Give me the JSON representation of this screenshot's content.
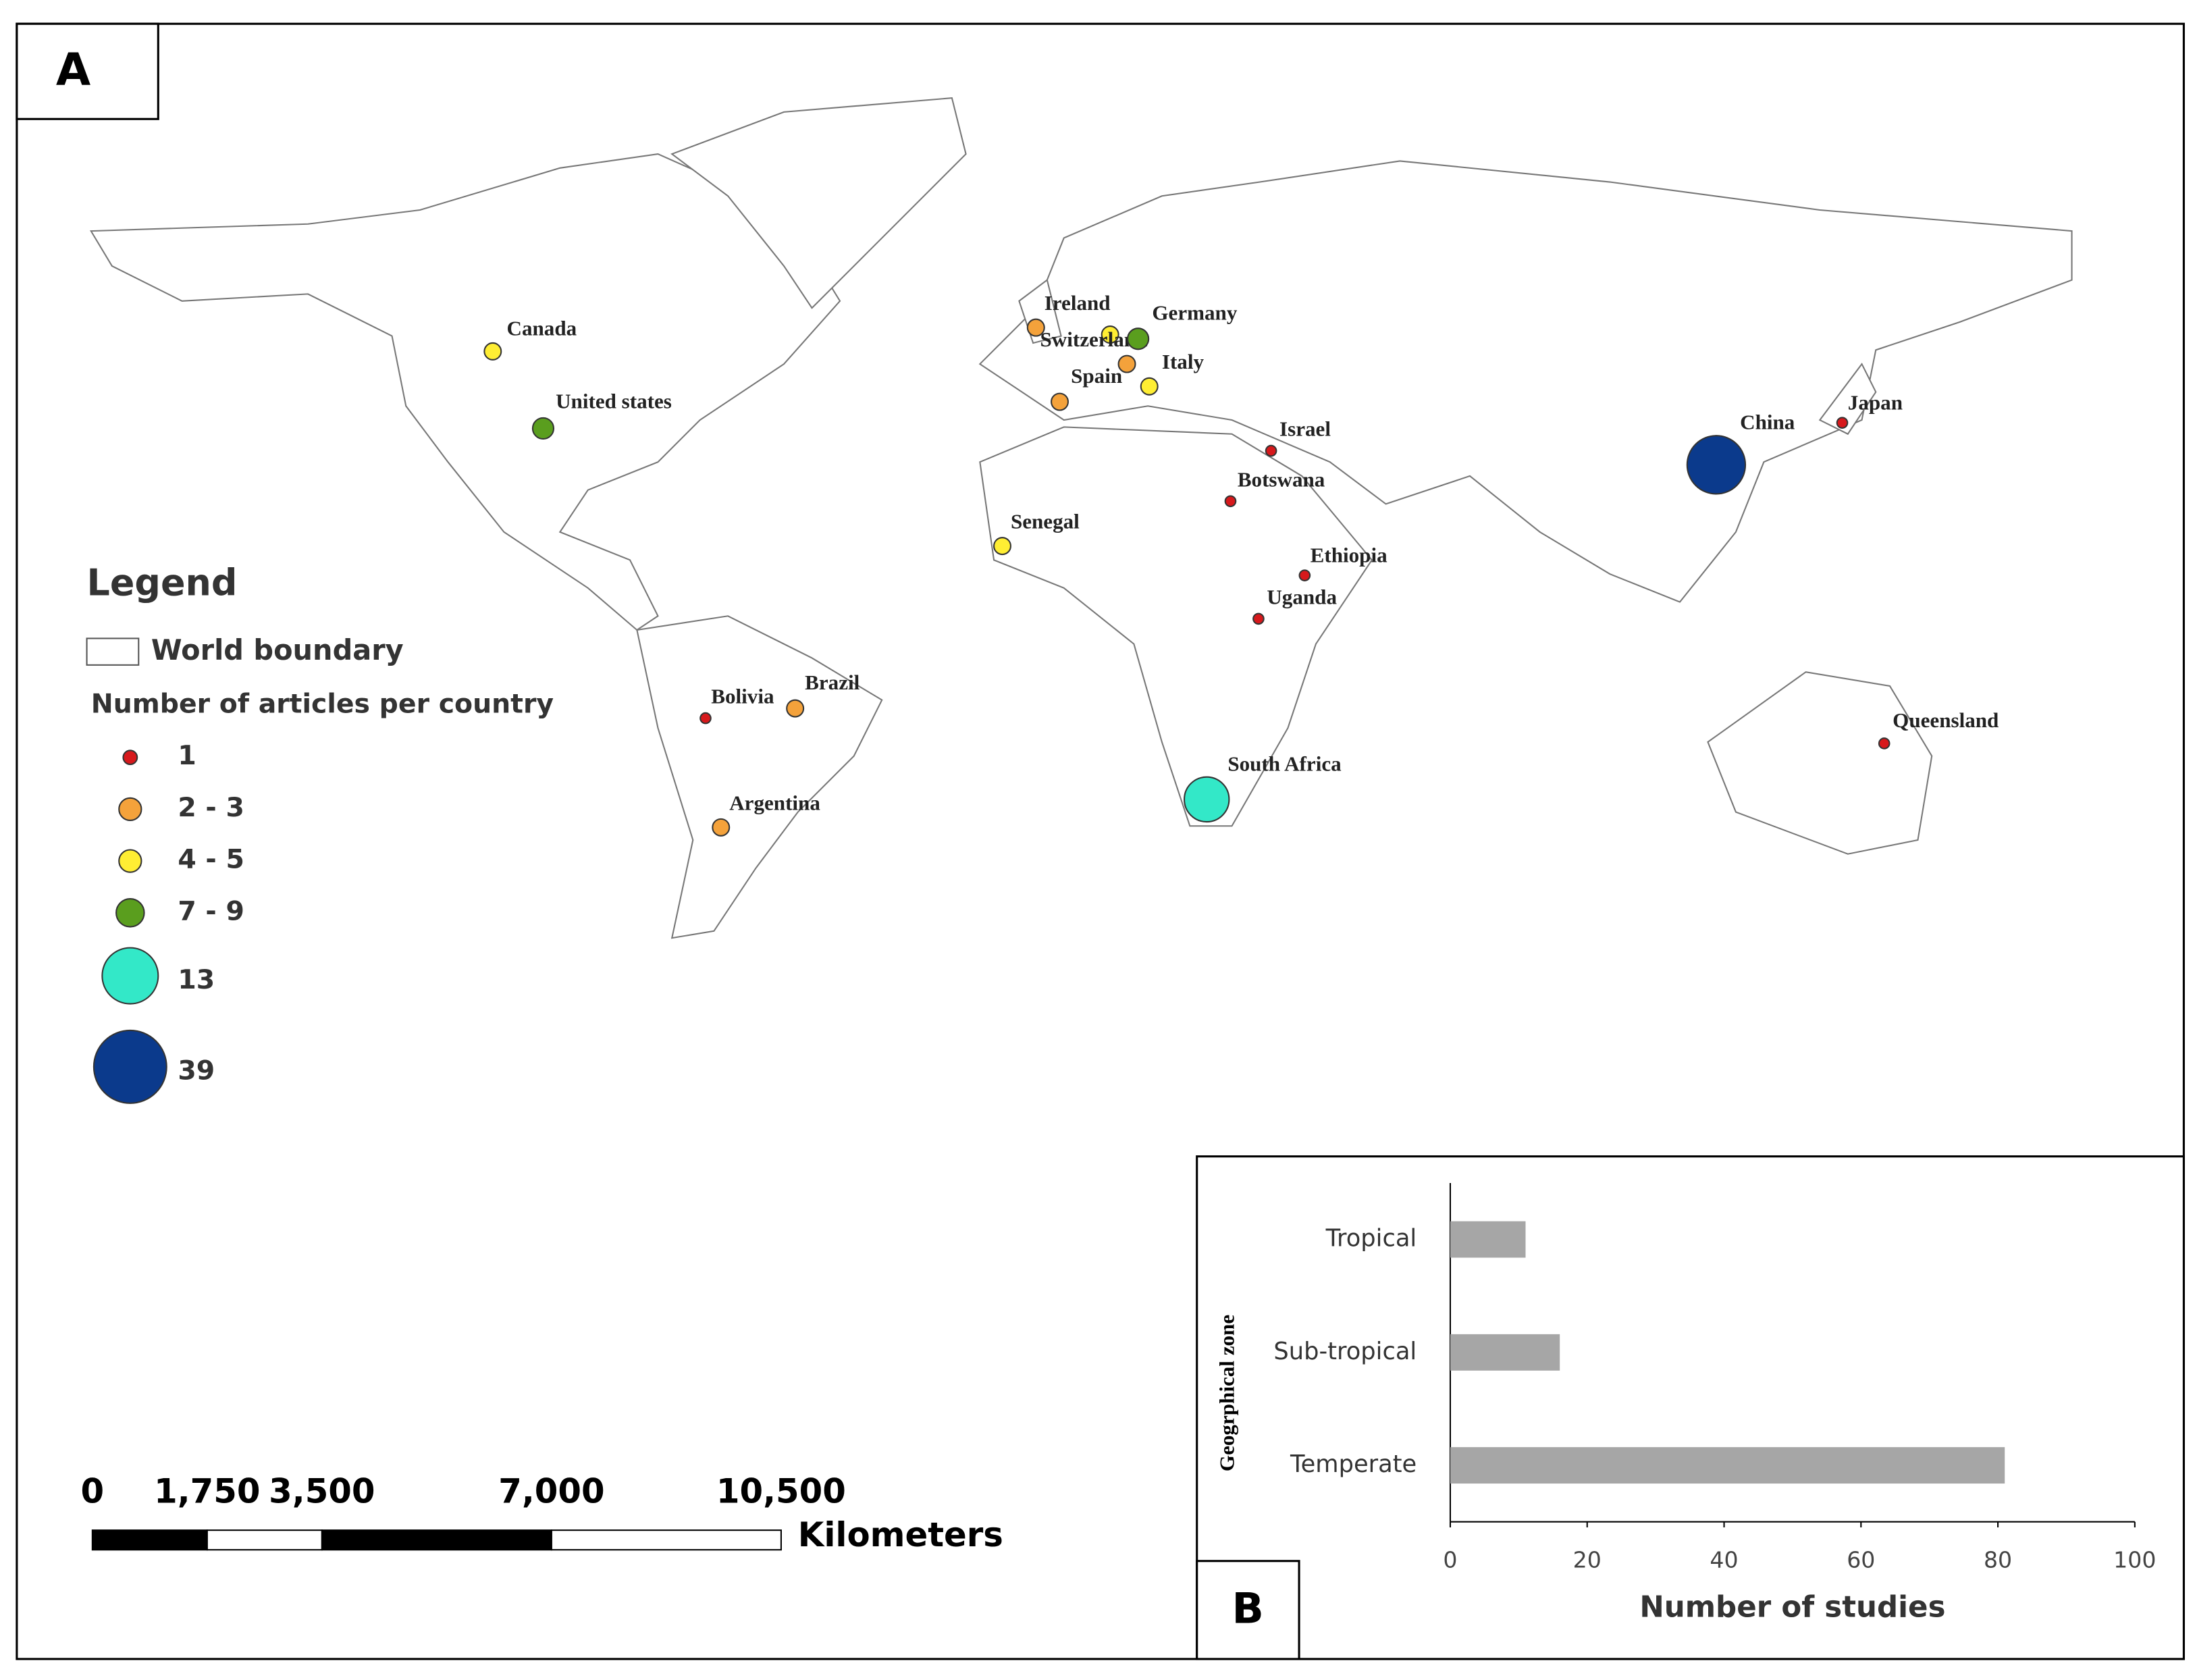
{
  "panels": {
    "a": "A",
    "b": "B"
  },
  "legend": {
    "title": "Legend",
    "boundary": "World boundary",
    "subtitle": "Number of articles per country",
    "classes": [
      {
        "label": "1",
        "color": "#d7191c"
      },
      {
        "label": "2 - 3",
        "color": "#f4a23b"
      },
      {
        "label": "4 - 5",
        "color": "#ffee33"
      },
      {
        "label": "7 - 9",
        "color": "#5a9e1e"
      },
      {
        "label": "13",
        "color": "#33e8c8"
      },
      {
        "label": "39",
        "color": "#0b3a8c"
      }
    ]
  },
  "countries": [
    {
      "name": "Canada",
      "class": "4 - 5"
    },
    {
      "name": "United states",
      "class": "7 - 9"
    },
    {
      "name": "Ireland",
      "class": "2 - 3"
    },
    {
      "name": "Switzerland",
      "class": "4 - 5"
    },
    {
      "name": "Germany",
      "class": "7 - 9"
    },
    {
      "name": null,
      "class": "2 - 3"
    },
    {
      "name": "Spain",
      "class": "2 - 3"
    },
    {
      "name": "Italy",
      "class": "4 - 5"
    },
    {
      "name": "Israel",
      "class": "1"
    },
    {
      "name": "Botswana",
      "class": "1"
    },
    {
      "name": "Senegal",
      "class": "4 - 5"
    },
    {
      "name": "Ethiopia",
      "class": "1"
    },
    {
      "name": "Uganda",
      "class": "1"
    },
    {
      "name": "Bolivia",
      "class": "1"
    },
    {
      "name": "Brazil",
      "class": "2 - 3"
    },
    {
      "name": "Argentina",
      "class": "2 - 3"
    },
    {
      "name": "South Africa",
      "class": "13"
    },
    {
      "name": "China",
      "class": "39"
    },
    {
      "name": "Japan",
      "class": "1"
    },
    {
      "name": "Queensland",
      "class": "1"
    }
  ],
  "scale_bar": {
    "unit": "Kilometers",
    "ticks": [
      {
        "value": 0,
        "label": "0"
      },
      {
        "value": 1750,
        "label": "1,750"
      },
      {
        "value": 3500,
        "label": "3,500"
      },
      {
        "value": 7000,
        "label": "7,000"
      },
      {
        "value": 10500,
        "label": "10,500"
      }
    ]
  },
  "chart_data": {
    "type": "bar",
    "orientation": "horizontal",
    "categories": [
      "Tropical",
      "Sub-tropical",
      "Temperate"
    ],
    "values": [
      11,
      16,
      81
    ],
    "color": "#a6a6a6",
    "xlim": [
      0,
      100
    ],
    "xticks": [
      0,
      20,
      40,
      60,
      80,
      100
    ],
    "xlabel": "Number of studies",
    "ylabel": "Geogrphical zone"
  }
}
